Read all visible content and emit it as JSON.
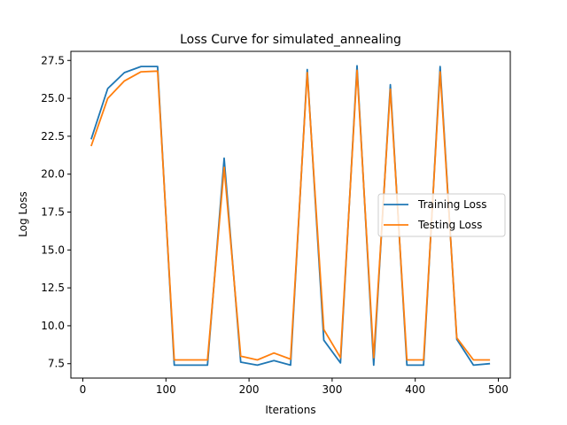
{
  "chart_data": {
    "type": "line",
    "title": "Loss Curve for simulated_annealing",
    "xlabel": "Iterations",
    "ylabel": "Log Loss",
    "xlim": [
      -14.4,
      514.4
    ],
    "ylim": [
      6.55,
      28.1
    ],
    "grid": false,
    "legend_position": "center-right",
    "xticks": [
      0,
      100,
      200,
      300,
      400,
      500
    ],
    "yticks": [
      7.5,
      10.0,
      12.5,
      15.0,
      17.5,
      20.0,
      22.5,
      25.0,
      27.5
    ],
    "xtick_labels": [
      "0",
      "100",
      "200",
      "300",
      "400",
      "500"
    ],
    "ytick_labels": [
      "7.5",
      "10.0",
      "12.5",
      "15.0",
      "17.5",
      "20.0",
      "22.5",
      "25.0",
      "27.5"
    ],
    "x": [
      10,
      30,
      50,
      70,
      90,
      110,
      130,
      150,
      170,
      190,
      210,
      230,
      250,
      270,
      290,
      310,
      330,
      350,
      370,
      390,
      410,
      430,
      450,
      470,
      490
    ],
    "series": [
      {
        "name": "Training Loss",
        "color": "#1f77b4",
        "values": [
          22.3,
          25.65,
          26.7,
          27.1,
          27.1,
          7.4,
          7.4,
          7.4,
          21.05,
          7.6,
          7.4,
          7.7,
          7.4,
          26.9,
          9.05,
          7.55,
          27.15,
          7.4,
          25.9,
          7.4,
          7.4,
          27.1,
          9.1,
          7.4,
          7.5
        ]
      },
      {
        "name": "Testing Loss",
        "color": "#ff7f0e",
        "values": [
          21.85,
          25.0,
          26.15,
          26.75,
          26.8,
          7.75,
          7.75,
          7.75,
          20.45,
          8.0,
          7.75,
          8.2,
          7.8,
          26.7,
          9.75,
          7.9,
          26.85,
          7.9,
          25.6,
          7.75,
          7.75,
          26.75,
          9.2,
          7.75,
          7.75
        ]
      }
    ]
  }
}
